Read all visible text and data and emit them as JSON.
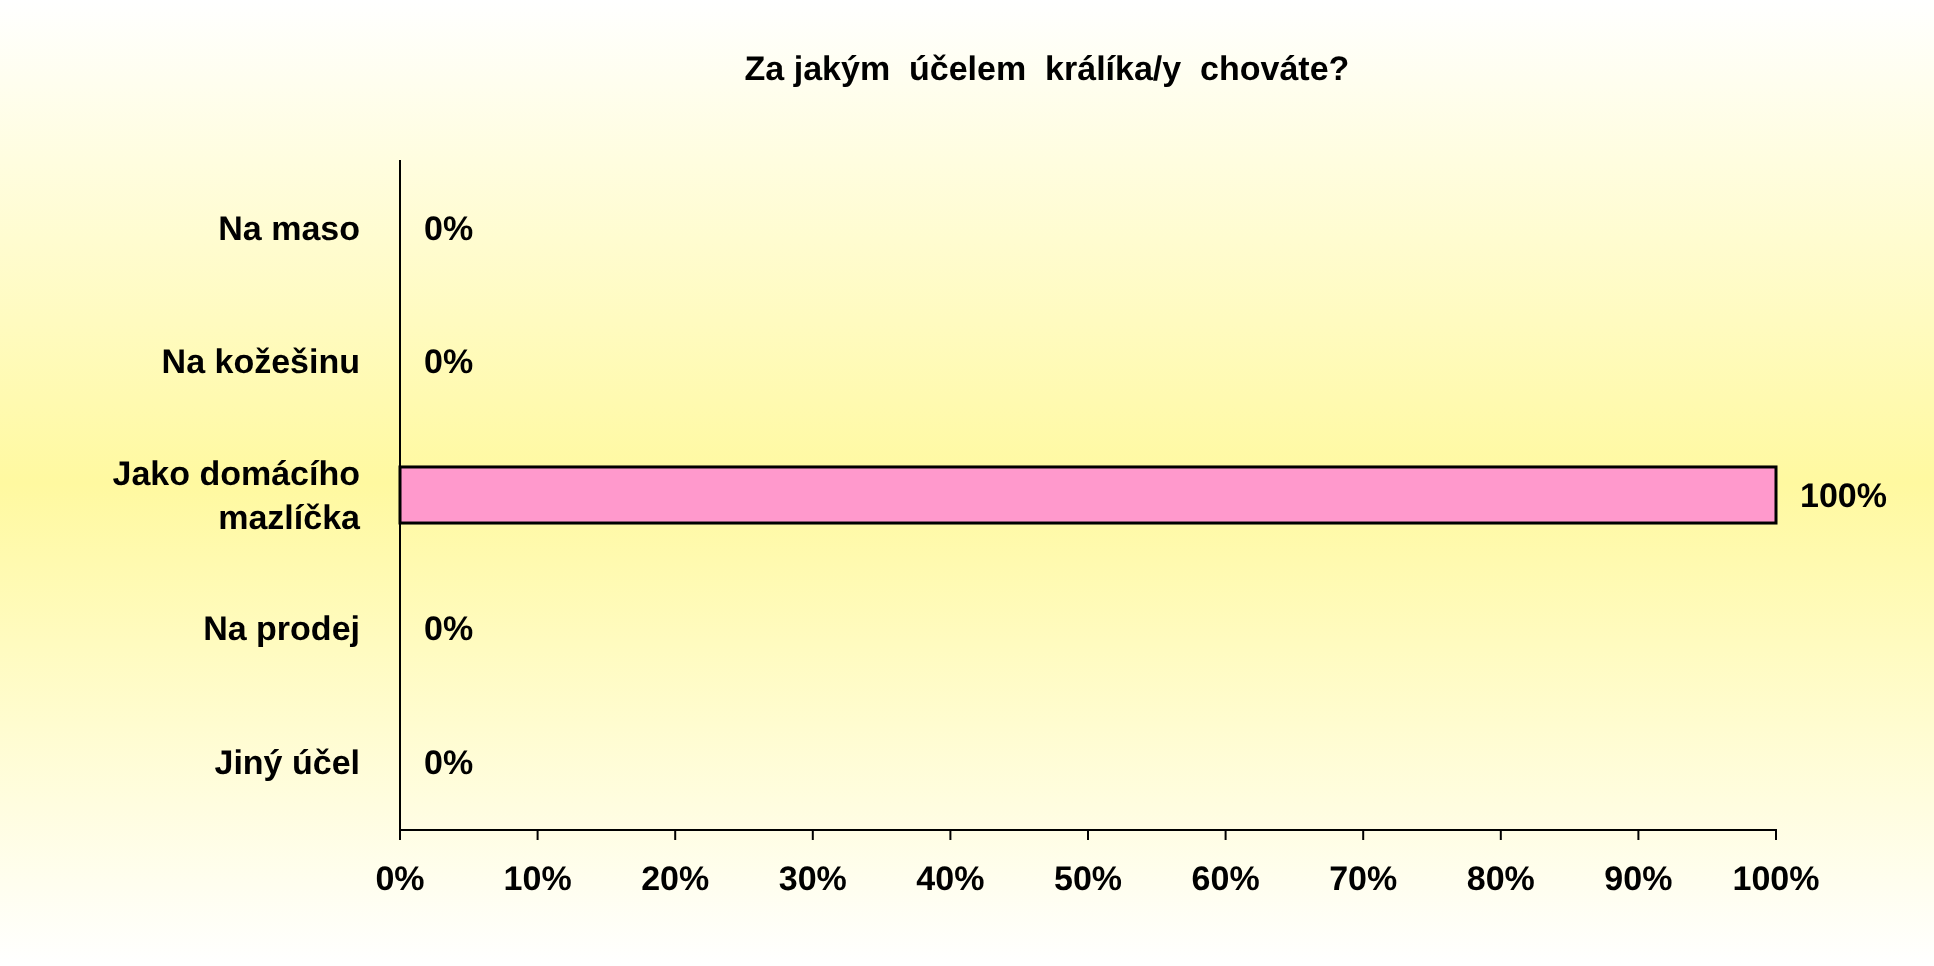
{
  "chart_data": {
    "type": "bar",
    "orientation": "horizontal",
    "title": "Za jakým  účelem  králíka/y  chováte?",
    "categories": [
      "Na maso",
      "Na kožešinu",
      "Jako domácího mazlíčka",
      "Na prodej",
      "Jiný účel"
    ],
    "values": [
      0,
      0,
      100,
      0,
      0
    ],
    "value_labels": [
      "0%",
      "0%",
      "100%",
      "0%",
      "0%"
    ],
    "color": "#ff99cc",
    "xlim": [
      0,
      100
    ],
    "xticks": [
      {
        "value": 0,
        "label": "0%"
      },
      {
        "value": 10,
        "label": "10%"
      },
      {
        "value": 20,
        "label": "20%"
      },
      {
        "value": 30,
        "label": "30%"
      },
      {
        "value": 40,
        "label": "40%"
      },
      {
        "value": 50,
        "label": "50%"
      },
      {
        "value": 60,
        "label": "60%"
      },
      {
        "value": 70,
        "label": "70%"
      },
      {
        "value": 80,
        "label": "80%"
      },
      {
        "value": 90,
        "label": "90%"
      },
      {
        "value": 100,
        "label": "100%"
      }
    ],
    "grid": false
  }
}
